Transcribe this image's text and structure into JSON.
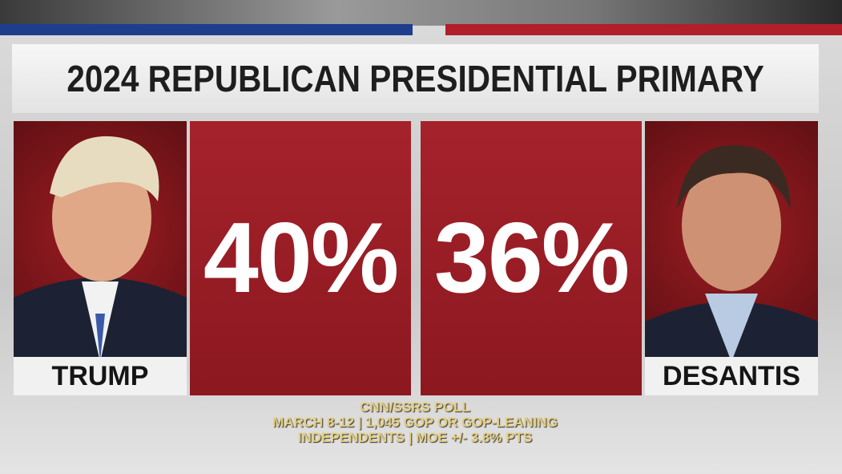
{
  "title": "2024 REPUBLICAN PRESIDENTIAL PRIMARY",
  "candidates": [
    {
      "name": "TRUMP",
      "percent": "40%"
    },
    {
      "name": "DESANTIS",
      "percent": "36%"
    }
  ],
  "footer": [
    "CNN/SSRS POLL",
    "MARCH 8-12 | 1,045 GOP OR GOP-LEANING",
    "INDEPENDENTS | MOE +/- 3.8% PTS"
  ]
}
